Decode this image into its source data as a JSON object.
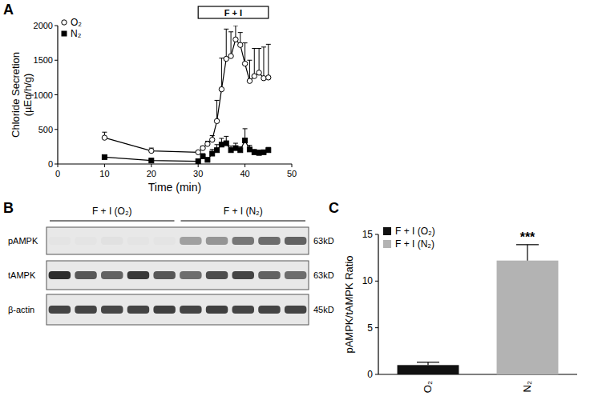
{
  "chart_data": [
    {
      "type": "line",
      "panel_label": "A",
      "xlabel": "Time (min)",
      "ylabel": [
        "Chloride Secretion",
        "(µEq/h/g)"
      ],
      "x": [
        10,
        20,
        30,
        31,
        32,
        33,
        34,
        35,
        36,
        37,
        38,
        39,
        40,
        41,
        42,
        43,
        44,
        45
      ],
      "series": [
        {
          "name": "O₂",
          "color": "#000000",
          "marker": "open_circle",
          "values": [
            380,
            190,
            170,
            230,
            290,
            350,
            620,
            1080,
            1520,
            1560,
            1800,
            1720,
            1450,
            1200,
            1270,
            1320,
            1240,
            1250
          ],
          "errors": [
            80,
            40,
            20,
            30,
            40,
            60,
            300,
            450,
            430,
            350,
            200,
            180,
            300,
            300,
            400,
            350,
            450,
            480
          ]
        },
        {
          "name": "N₂",
          "color": "#000000",
          "marker": "square",
          "values": [
            100,
            50,
            40,
            110,
            60,
            150,
            200,
            280,
            300,
            200,
            230,
            200,
            340,
            210,
            170,
            160,
            170,
            200
          ],
          "errors": [
            20,
            10,
            10,
            40,
            30,
            60,
            80,
            90,
            100,
            60,
            70,
            50,
            170,
            60,
            40,
            40,
            30,
            40
          ]
        }
      ],
      "annotations": [
        {
          "text": "F + I",
          "x": [
            30,
            45
          ]
        }
      ],
      "xlim": [
        0,
        50
      ],
      "xticks": [
        0,
        10,
        20,
        30,
        40,
        50
      ],
      "ylim": [
        0,
        2000
      ],
      "yticks": [
        0,
        500,
        1000,
        1500,
        2000
      ],
      "legend": "top-left",
      "grid": false
    },
    {
      "type": "blot",
      "panel_label": "B",
      "groups": [
        {
          "label": "F + I (O₂)",
          "lanes": 5
        },
        {
          "label": "F + I (N₂)",
          "lanes": 5
        }
      ],
      "series": [
        {
          "name": "pAMPK",
          "size_label": "63kD",
          "values": [
            0.02,
            0.02,
            0.03,
            0.02,
            0.02,
            0.35,
            0.4,
            0.55,
            0.6,
            0.65
          ]
        },
        {
          "name": "tAMPK",
          "size_label": "63kD",
          "values": [
            0.9,
            0.7,
            0.65,
            0.85,
            0.7,
            0.6,
            0.75,
            0.8,
            0.65,
            0.6
          ]
        },
        {
          "name": "β-actin",
          "size_label": "45kD",
          "values": [
            0.8,
            0.8,
            0.78,
            0.8,
            0.82,
            0.8,
            0.82,
            0.8,
            0.8,
            0.8
          ]
        }
      ]
    },
    {
      "type": "bar",
      "panel_label": "C",
      "ylabel": "pAMPK/tAMPK Ratio",
      "categories": [
        "O₂",
        "N₂"
      ],
      "values": [
        1.0,
        12.2
      ],
      "errors": [
        0.3,
        1.7
      ],
      "colors": [
        "#111111",
        "#b3b3b3"
      ],
      "legend_labels": [
        "F + I (O₂)",
        "F + I (N₂)"
      ],
      "annotations": [
        {
          "text": "***",
          "category": 1
        }
      ],
      "ylim": [
        0,
        15
      ],
      "yticks": [
        0,
        5,
        10,
        15
      ],
      "legend": "top-left",
      "grid": false
    }
  ]
}
